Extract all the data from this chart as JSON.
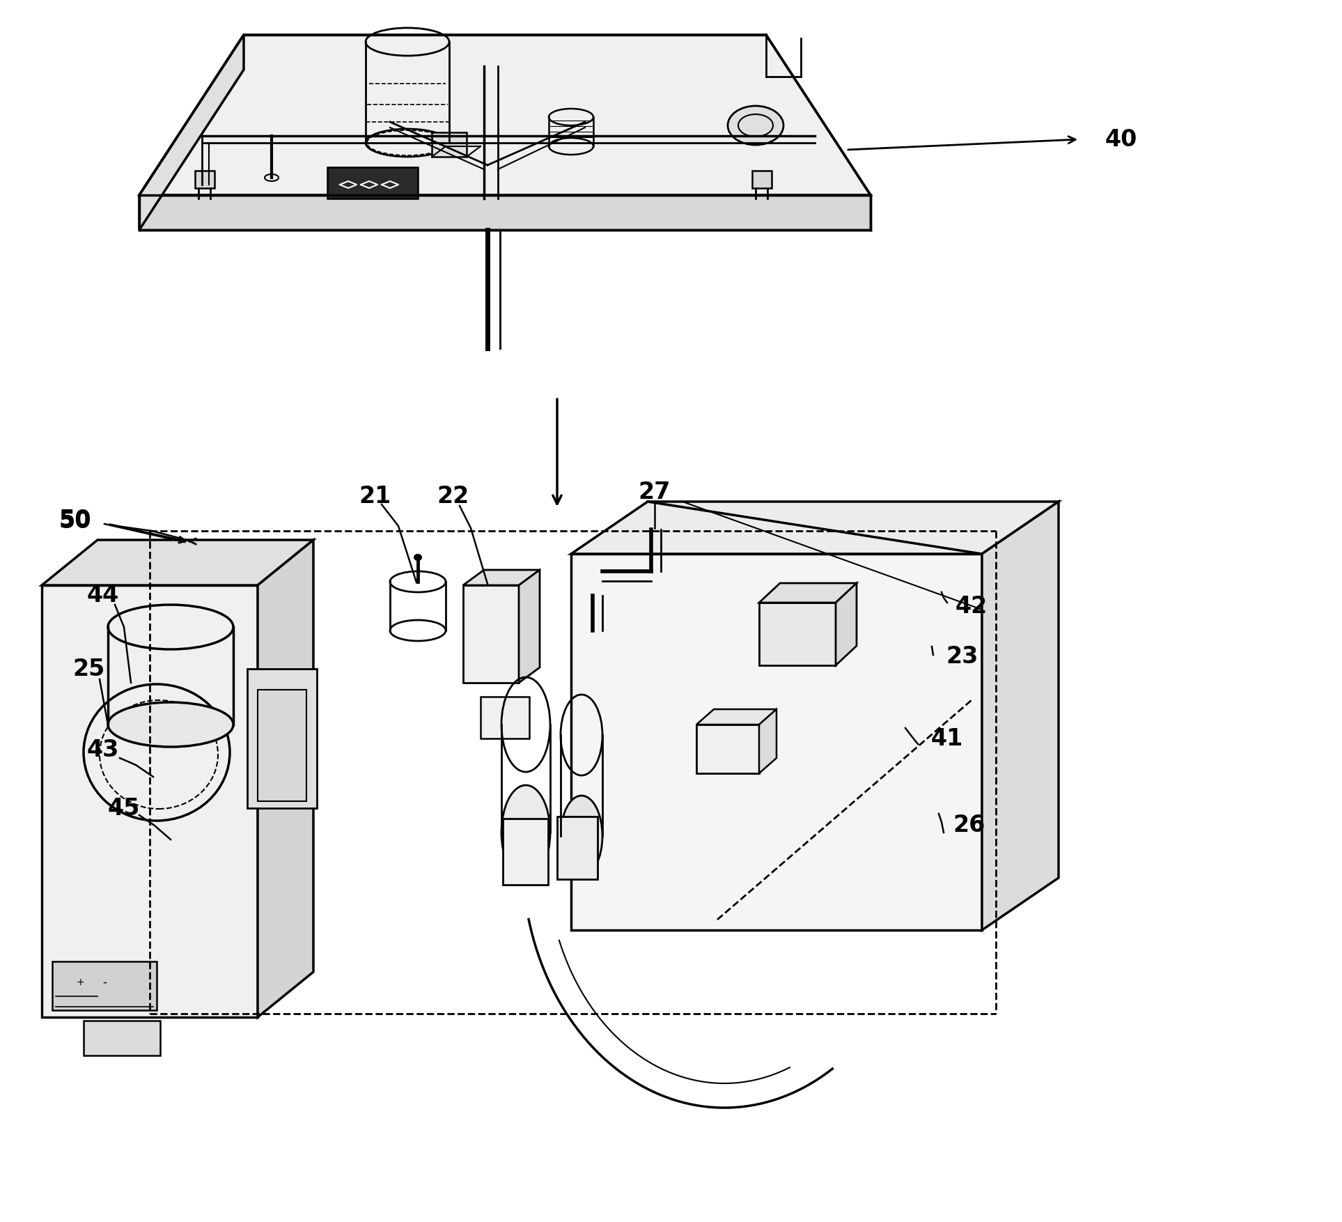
{
  "background_color": "#ffffff",
  "line_color": "#000000",
  "figsize": [
    19.27,
    17.54
  ],
  "dpi": 100
}
